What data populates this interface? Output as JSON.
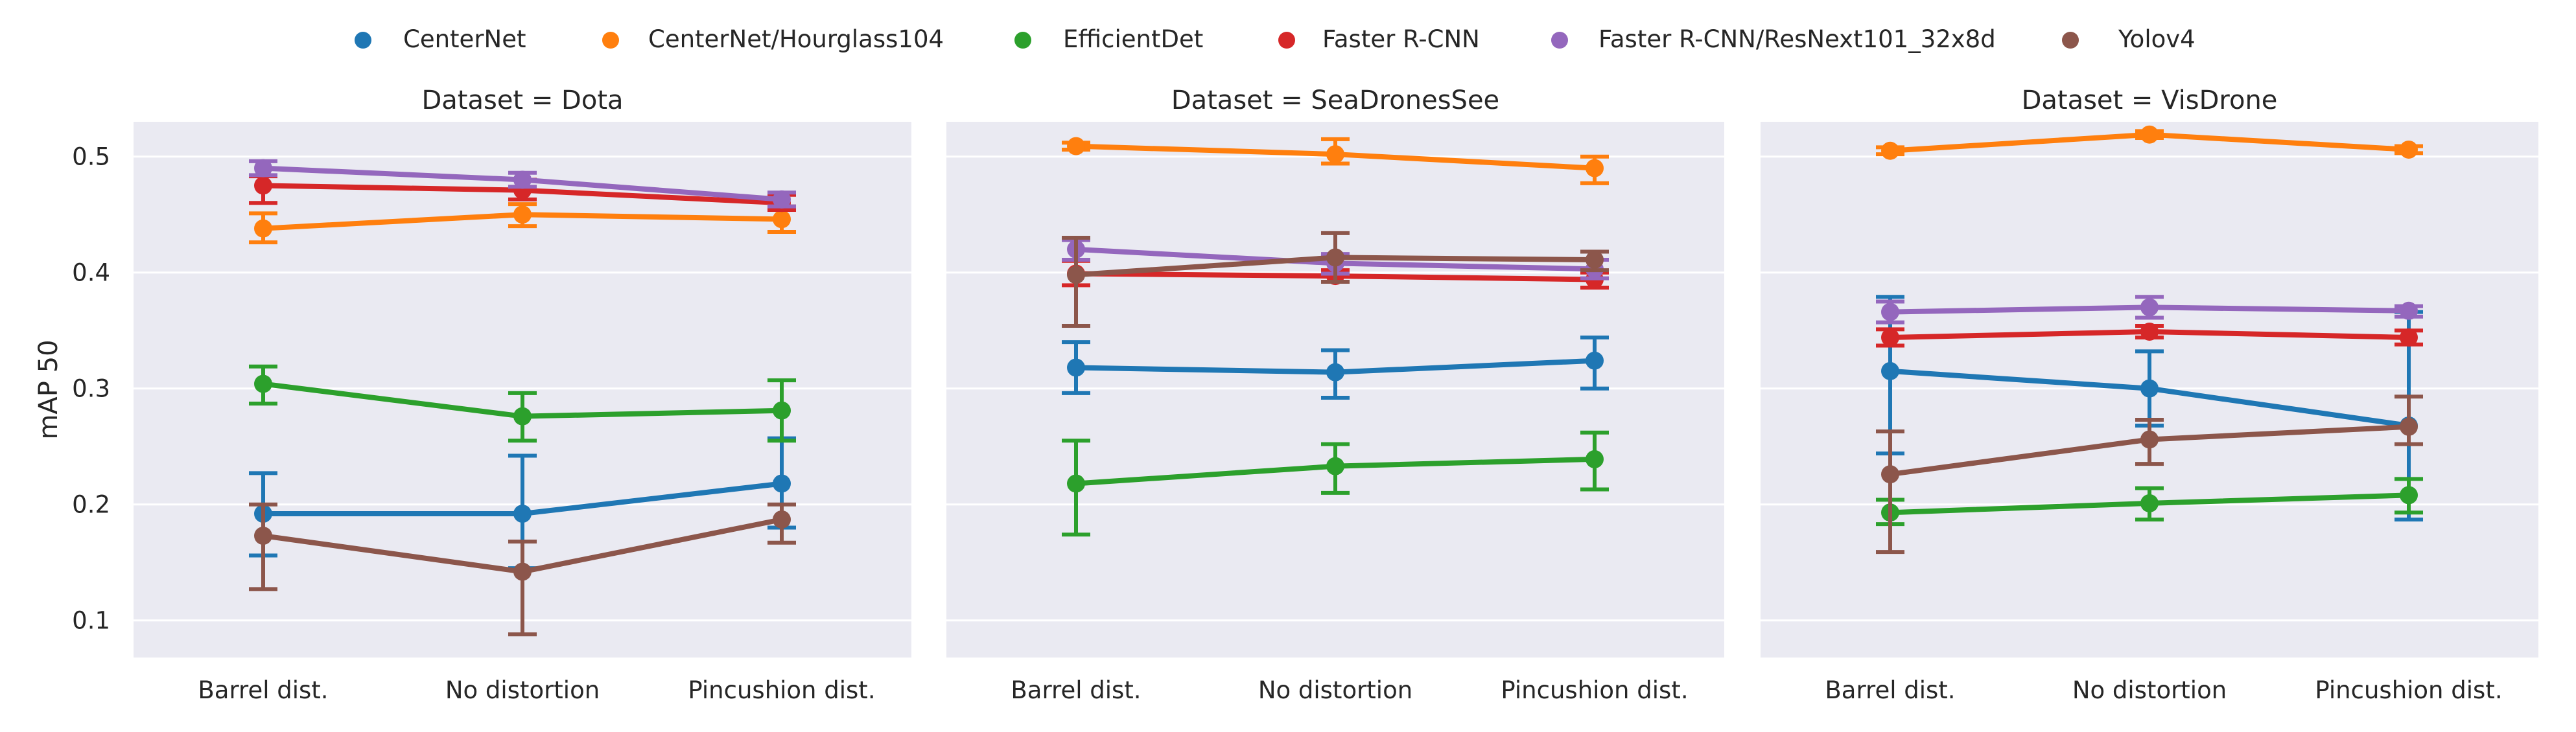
{
  "chart_data": {
    "type": "line",
    "style": "pointplot-with-error-bars",
    "ylabel": "mAP 50",
    "xlabel": "",
    "ylim": [
      0.068,
      0.53
    ],
    "yticks": [
      0.1,
      0.2,
      0.3,
      0.4,
      0.5
    ],
    "ytick_labels": [
      "0.1",
      "0.2",
      "0.3",
      "0.4",
      "0.5"
    ],
    "categories": [
      "Barrel dist.",
      "No distortion",
      "Pincushion dist."
    ],
    "grid": true,
    "legend_placement": "top-center",
    "legend": [
      {
        "name": "CenterNet",
        "color": "#1f77b4"
      },
      {
        "name": "CenterNet/Hourglass104",
        "color": "#ff7f0e"
      },
      {
        "name": "EfficientDet",
        "color": "#2ca02c"
      },
      {
        "name": "Faster R-CNN",
        "color": "#d62728"
      },
      {
        "name": "Faster R-CNN/ResNext101_32x8d",
        "color": "#9467bd"
      },
      {
        "name": "Yolov4",
        "color": "#8c564b"
      }
    ],
    "panels": [
      {
        "title": "Dataset = Dota",
        "series": [
          {
            "name": "CenterNet",
            "values": [
              0.192,
              0.192,
              0.218
            ],
            "err_low": [
              0.156,
              0.145,
              0.18
            ],
            "err_high": [
              0.227,
              0.242,
              0.257
            ]
          },
          {
            "name": "CenterNet/Hourglass104",
            "values": [
              0.438,
              0.45,
              0.446
            ],
            "err_low": [
              0.426,
              0.44,
              0.435
            ],
            "err_high": [
              0.451,
              0.459,
              0.457
            ]
          },
          {
            "name": "EfficientDet",
            "values": [
              0.304,
              0.276,
              0.281
            ],
            "err_low": [
              0.287,
              0.255,
              0.255
            ],
            "err_high": [
              0.319,
              0.296,
              0.307
            ]
          },
          {
            "name": "Faster R-CNN",
            "values": [
              0.475,
              0.471,
              0.46
            ],
            "err_low": [
              0.46,
              0.463,
              0.454
            ],
            "err_high": [
              0.483,
              0.48,
              0.467
            ]
          },
          {
            "name": "Faster R-CNN/ResNext101_32x8d",
            "values": [
              0.49,
              0.48,
              0.463
            ],
            "err_low": [
              0.484,
              0.474,
              0.457
            ],
            "err_high": [
              0.496,
              0.486,
              0.469
            ]
          },
          {
            "name": "Yolov4",
            "values": [
              0.173,
              0.142,
              0.187
            ],
            "err_low": [
              0.127,
              0.088,
              0.167
            ],
            "err_high": [
              0.2,
              0.168,
              0.2
            ]
          }
        ]
      },
      {
        "title": "Dataset = SeaDronesSee",
        "series": [
          {
            "name": "CenterNet",
            "values": [
              0.318,
              0.314,
              0.324
            ],
            "err_low": [
              0.296,
              0.292,
              0.3
            ],
            "err_high": [
              0.34,
              0.333,
              0.344
            ]
          },
          {
            "name": "CenterNet/Hourglass104",
            "values": [
              0.509,
              0.502,
              0.49
            ],
            "err_low": [
              0.506,
              0.494,
              0.477
            ],
            "err_high": [
              0.512,
              0.515,
              0.5
            ]
          },
          {
            "name": "EfficientDet",
            "values": [
              0.218,
              0.233,
              0.239
            ],
            "err_low": [
              0.174,
              0.21,
              0.213
            ],
            "err_high": [
              0.255,
              0.252,
              0.262
            ]
          },
          {
            "name": "Faster R-CNN",
            "values": [
              0.399,
              0.397,
              0.394
            ],
            "err_low": [
              0.389,
              0.392,
              0.387
            ],
            "err_high": [
              0.41,
              0.402,
              0.4
            ]
          },
          {
            "name": "Faster R-CNN/ResNext101_32x8d",
            "values": [
              0.42,
              0.408,
              0.403
            ],
            "err_low": [
              0.411,
              0.399,
              0.395
            ],
            "err_high": [
              0.428,
              0.416,
              0.411
            ]
          },
          {
            "name": "Yolov4",
            "values": [
              0.398,
              0.413,
              0.411
            ],
            "err_low": [
              0.354,
              0.392,
              0.402
            ],
            "err_high": [
              0.43,
              0.434,
              0.418
            ]
          }
        ]
      },
      {
        "title": "Dataset = VisDrone",
        "series": [
          {
            "name": "CenterNet",
            "values": [
              0.315,
              0.3,
              0.268
            ],
            "err_low": [
              0.244,
              0.268,
              0.187
            ],
            "err_high": [
              0.379,
              0.332,
              0.366
            ]
          },
          {
            "name": "CenterNet/Hourglass104",
            "values": [
              0.505,
              0.519,
              0.506
            ],
            "err_low": [
              0.502,
              0.516,
              0.503
            ],
            "err_high": [
              0.508,
              0.522,
              0.509
            ]
          },
          {
            "name": "EfficientDet",
            "values": [
              0.193,
              0.201,
              0.208
            ],
            "err_low": [
              0.183,
              0.187,
              0.193
            ],
            "err_high": [
              0.204,
              0.214,
              0.222
            ]
          },
          {
            "name": "Faster R-CNN",
            "values": [
              0.344,
              0.349,
              0.344
            ],
            "err_low": [
              0.337,
              0.344,
              0.338
            ],
            "err_high": [
              0.351,
              0.354,
              0.35
            ]
          },
          {
            "name": "Faster R-CNN/ResNext101_32x8d",
            "values": [
              0.366,
              0.37,
              0.367
            ],
            "err_low": [
              0.357,
              0.361,
              0.362
            ],
            "err_high": [
              0.375,
              0.379,
              0.371
            ]
          },
          {
            "name": "Yolov4",
            "values": [
              0.226,
              0.256,
              0.267
            ],
            "err_low": [
              0.159,
              0.235,
              0.252
            ],
            "err_high": [
              0.263,
              0.273,
              0.293
            ]
          }
        ]
      }
    ]
  }
}
